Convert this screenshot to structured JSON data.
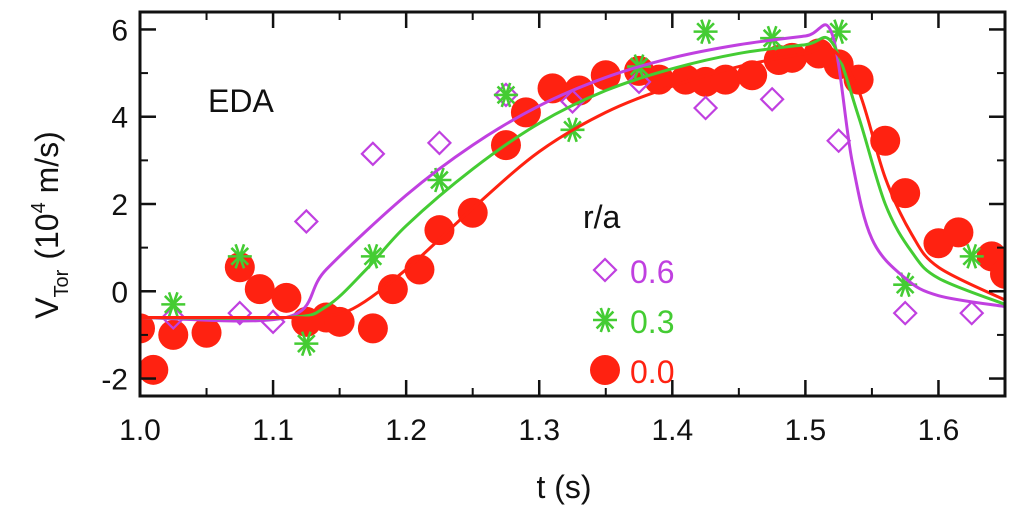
{
  "chart_data": {
    "type": "scatter",
    "annotation": "EDA",
    "xlabel": "t (s)",
    "ylabel": {
      "main": "V",
      "subscript": "Tor",
      "units_prefix": "(10",
      "exponent": "4",
      "units_suffix": " m/s)"
    },
    "xlim": [
      1.0,
      1.65
    ],
    "ylim": [
      -2.4,
      6.4
    ],
    "x_ticks": [
      1.0,
      1.1,
      1.2,
      1.3,
      1.4,
      1.5,
      1.6
    ],
    "x_tick_labels": [
      "1.0",
      "1.1",
      "1.2",
      "1.3",
      "1.4",
      "1.5",
      "1.6"
    ],
    "y_ticks": [
      -2,
      0,
      2,
      4,
      6
    ],
    "y_tick_labels": [
      "-2",
      "0",
      "2",
      "4",
      "6"
    ],
    "grid": false,
    "legend": {
      "title": "r/a",
      "placement": "center-right"
    },
    "series": [
      {
        "name": "0.6",
        "marker": "diamond",
        "color": "#c040e0",
        "points": [
          [
            1.025,
            -0.6
          ],
          [
            1.075,
            -0.5
          ],
          [
            1.1,
            -0.7
          ],
          [
            1.125,
            1.6
          ],
          [
            1.175,
            3.15
          ],
          [
            1.225,
            3.4
          ],
          [
            1.275,
            4.5
          ],
          [
            1.325,
            4.35
          ],
          [
            1.375,
            4.8
          ],
          [
            1.425,
            4.2
          ],
          [
            1.475,
            4.4
          ],
          [
            1.525,
            3.45
          ],
          [
            1.575,
            -0.5
          ],
          [
            1.625,
            -0.5
          ]
        ],
        "fit": [
          [
            1.0,
            -0.6
          ],
          [
            1.11,
            -0.6
          ],
          [
            1.14,
            0.5
          ],
          [
            1.2,
            2.2
          ],
          [
            1.25,
            3.35
          ],
          [
            1.3,
            4.25
          ],
          [
            1.35,
            4.9
          ],
          [
            1.4,
            5.35
          ],
          [
            1.45,
            5.65
          ],
          [
            1.5,
            5.85
          ],
          [
            1.52,
            5.9
          ],
          [
            1.535,
            3.0
          ],
          [
            1.55,
            1.2
          ],
          [
            1.575,
            0.3
          ],
          [
            1.6,
            -0.1
          ],
          [
            1.65,
            -0.35
          ]
        ]
      },
      {
        "name": "0.3",
        "marker": "asterisk",
        "color": "#44cc33",
        "points": [
          [
            1.025,
            -0.3
          ],
          [
            1.075,
            0.8
          ],
          [
            1.125,
            -1.2
          ],
          [
            1.175,
            0.8
          ],
          [
            1.225,
            2.55
          ],
          [
            1.275,
            4.5
          ],
          [
            1.325,
            3.7
          ],
          [
            1.375,
            5.15
          ],
          [
            1.425,
            5.95
          ],
          [
            1.475,
            5.8
          ],
          [
            1.525,
            5.95
          ],
          [
            1.575,
            0.15
          ],
          [
            1.625,
            0.8
          ]
        ],
        "fit": [
          [
            1.0,
            -0.6
          ],
          [
            1.11,
            -0.6
          ],
          [
            1.14,
            -0.35
          ],
          [
            1.17,
            0.5
          ],
          [
            1.2,
            1.5
          ],
          [
            1.25,
            2.8
          ],
          [
            1.3,
            3.85
          ],
          [
            1.35,
            4.6
          ],
          [
            1.4,
            5.1
          ],
          [
            1.45,
            5.45
          ],
          [
            1.5,
            5.65
          ],
          [
            1.52,
            5.7
          ],
          [
            1.54,
            4.0
          ],
          [
            1.56,
            2.0
          ],
          [
            1.58,
            0.9
          ],
          [
            1.6,
            0.3
          ],
          [
            1.65,
            -0.3
          ]
        ]
      },
      {
        "name": "0.0",
        "marker": "circle",
        "color": "#ff2211",
        "points": [
          [
            1.0,
            -0.85
          ],
          [
            1.01,
            -1.8
          ],
          [
            1.025,
            -1.0
          ],
          [
            1.05,
            -0.95
          ],
          [
            1.075,
            0.55
          ],
          [
            1.09,
            0.05
          ],
          [
            1.11,
            -0.15
          ],
          [
            1.125,
            -0.7
          ],
          [
            1.14,
            -0.6
          ],
          [
            1.15,
            -0.7
          ],
          [
            1.175,
            -0.85
          ],
          [
            1.19,
            0.05
          ],
          [
            1.21,
            0.5
          ],
          [
            1.225,
            1.4
          ],
          [
            1.25,
            1.8
          ],
          [
            1.275,
            3.35
          ],
          [
            1.29,
            4.1
          ],
          [
            1.31,
            4.65
          ],
          [
            1.33,
            4.6
          ],
          [
            1.35,
            4.95
          ],
          [
            1.375,
            5.05
          ],
          [
            1.39,
            4.85
          ],
          [
            1.41,
            4.85
          ],
          [
            1.425,
            4.8
          ],
          [
            1.44,
            4.85
          ],
          [
            1.46,
            4.95
          ],
          [
            1.48,
            5.3
          ],
          [
            1.49,
            5.35
          ],
          [
            1.51,
            5.45
          ],
          [
            1.525,
            5.2
          ],
          [
            1.54,
            4.85
          ],
          [
            1.56,
            3.45
          ],
          [
            1.575,
            2.25
          ],
          [
            1.6,
            1.1
          ],
          [
            1.615,
            1.35
          ],
          [
            1.64,
            0.8
          ],
          [
            1.65,
            0.4
          ]
        ],
        "fit": [
          [
            1.0,
            -0.6
          ],
          [
            1.11,
            -0.6
          ],
          [
            1.13,
            -0.6
          ],
          [
            1.16,
            -0.4
          ],
          [
            1.2,
            0.5
          ],
          [
            1.25,
            1.9
          ],
          [
            1.3,
            3.2
          ],
          [
            1.35,
            4.1
          ],
          [
            1.4,
            4.7
          ],
          [
            1.45,
            5.15
          ],
          [
            1.5,
            5.45
          ],
          [
            1.52,
            5.55
          ],
          [
            1.54,
            4.6
          ],
          [
            1.56,
            2.6
          ],
          [
            1.58,
            1.3
          ],
          [
            1.6,
            0.55
          ],
          [
            1.65,
            -0.2
          ]
        ]
      }
    ]
  }
}
